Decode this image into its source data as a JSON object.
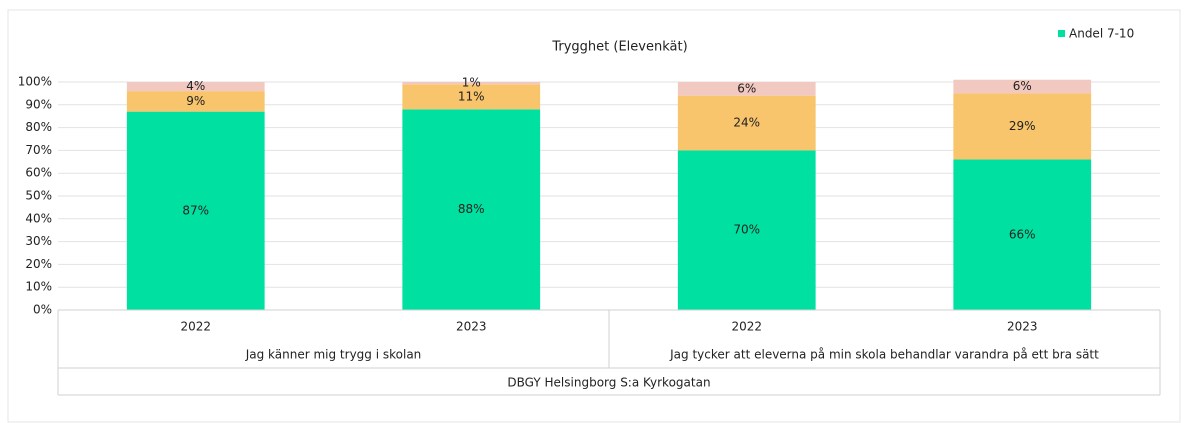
{
  "chart_data": {
    "type": "stacked_bar",
    "title": "Trygghet (Elevenkät)",
    "categories": [
      "2022",
      "2023",
      "2022",
      "2023"
    ],
    "groups": [
      {
        "label": "Jag känner mig trygg i skolan",
        "span": 2
      },
      {
        "label": "Jag tycker att eleverna på min skola behandlar varandra på ett bra sätt",
        "span": 2
      }
    ],
    "outer_label": "DBGY Helsingborg S:a Kyrkogatan",
    "series": [
      {
        "name": "Andel 7-10",
        "color": "#00e0a0",
        "values": [
          87,
          88,
          70,
          66
        ],
        "value_labels": [
          "87%",
          "88%",
          "70%",
          "66%"
        ]
      },
      {
        "color": "#f8c46c",
        "values": [
          9,
          11,
          24,
          29
        ],
        "value_labels": [
          "9%",
          "11%",
          "24%",
          "29%"
        ]
      },
      {
        "color": "#f2c9c0",
        "values": [
          4,
          1,
          6,
          6
        ],
        "value_labels": [
          "4%",
          "1%",
          "6%",
          "6%"
        ]
      }
    ],
    "ylim": [
      0,
      100
    ],
    "yticks": [
      {
        "value": 0,
        "label": "0%"
      },
      {
        "value": 10,
        "label": "10%"
      },
      {
        "value": 20,
        "label": "20%"
      },
      {
        "value": 30,
        "label": "30%"
      },
      {
        "value": 40,
        "label": "40%"
      },
      {
        "value": 50,
        "label": "50%"
      },
      {
        "value": 60,
        "label": "60%"
      },
      {
        "value": 70,
        "label": "70%"
      },
      {
        "value": 80,
        "label": "80%"
      },
      {
        "value": 90,
        "label": "90%"
      },
      {
        "value": 100,
        "label": "100%"
      }
    ],
    "grid": true,
    "legend": "top-right"
  }
}
